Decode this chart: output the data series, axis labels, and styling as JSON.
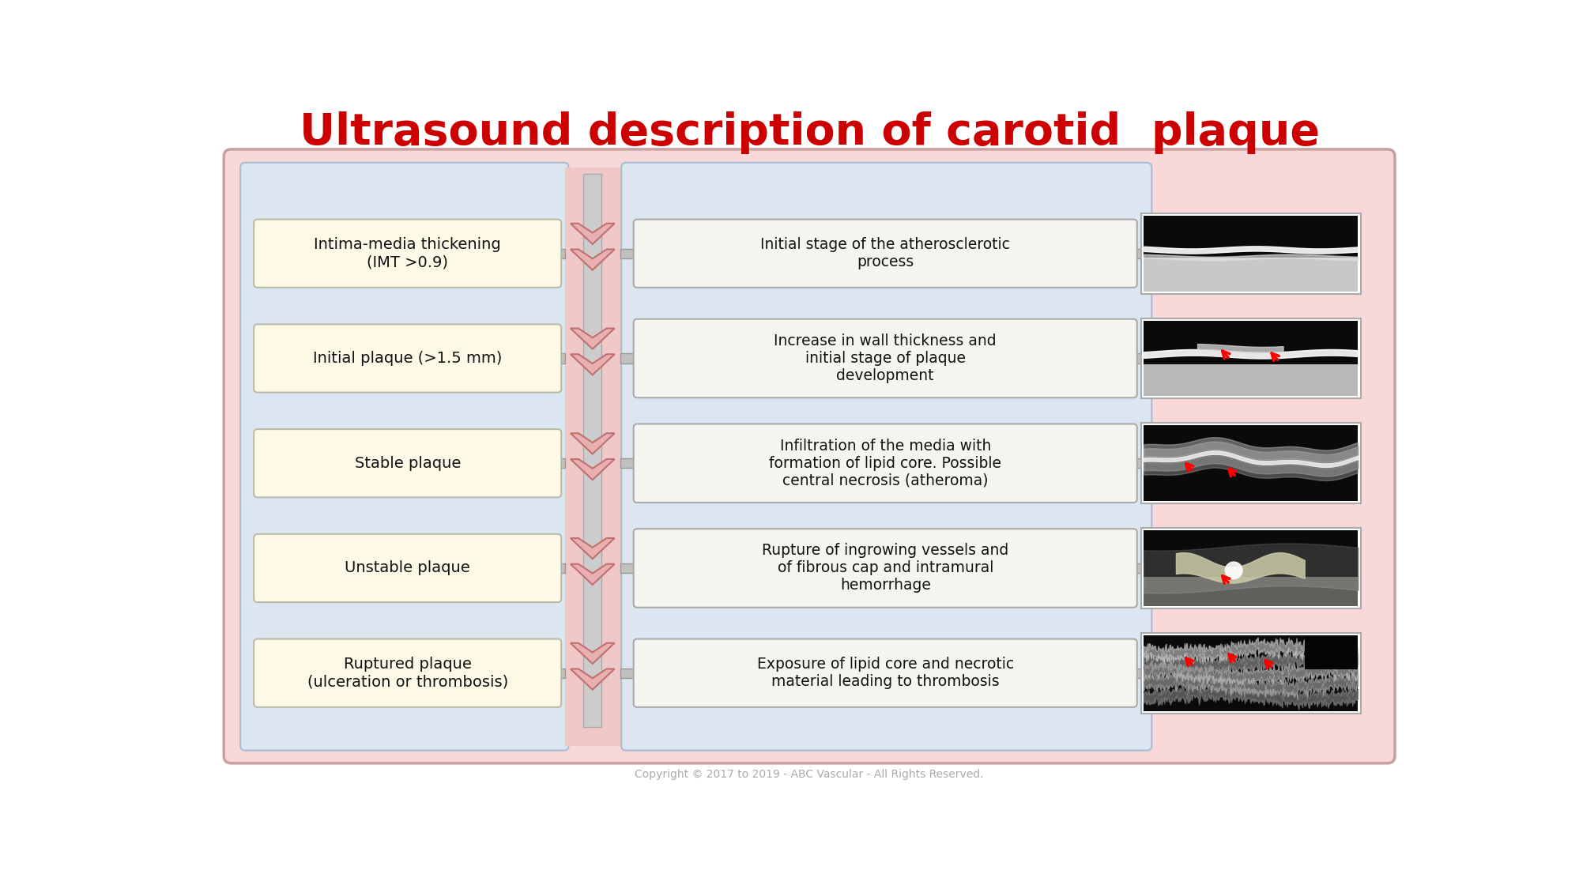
{
  "title": "Ultrasound description of carotid  plaque",
  "title_color": "#cc0000",
  "title_fontsize": 40,
  "copyright": "Copyright © 2017 to 2019 - ABC Vascular - All Rights Reserved.",
  "bg_outer": "#ffffff",
  "bg_panel": "#f8d8d8",
  "bg_left_col": "#dce6f1",
  "box_fill_left": "#fef9e7",
  "box_edge_left": "#bbbbaa",
  "box_fill_right": "#f5f5f0",
  "box_edge_right": "#aaaaaa",
  "left_labels": [
    "Intima-media thickening\n(IMT >0.9)",
    "Initial plaque (>1.5 mm)",
    "Stable plaque",
    "Unstable plaque",
    "Ruptured plaque\n(ulceration or thrombosis)"
  ],
  "right_labels": [
    "Initial stage of the atherosclerotic\nprocess",
    "Increase in wall thickness and\ninitial stage of plaque\ndevelopment",
    "Infiltration of the media with\nformation of lipid core. Possible\ncentral necrosis (atheroma)",
    "Rupture of ingrowing vessels and\nof fibrous cap and intramural\nhemorrhage",
    "Exposure of lipid core and necrotic\nmaterial leading to thrombosis"
  ],
  "chevron_fill": "#e8b0b0",
  "chevron_edge": "#c07070",
  "connector_color": "#c0c0c0",
  "connector_edge": "#999999"
}
